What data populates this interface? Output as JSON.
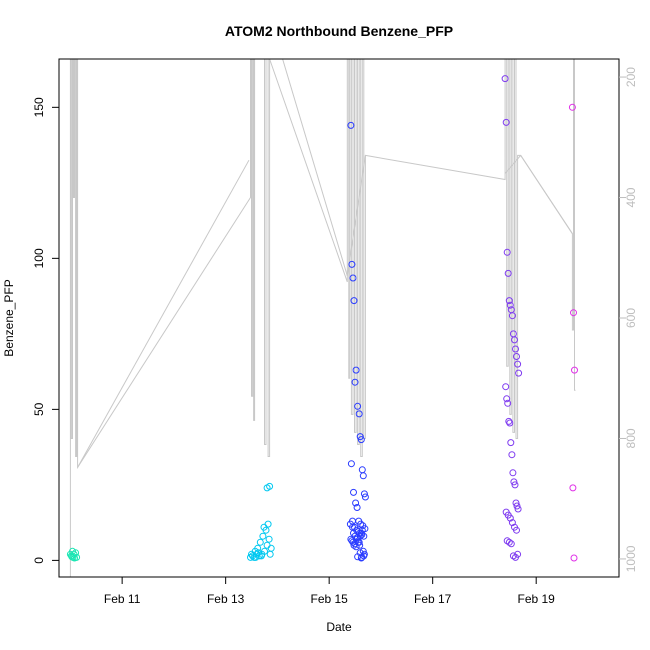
{
  "chart_data": {
    "type": "scatter",
    "title": "ATOM2 Northbound Benzene_PFP",
    "xlabel": "Date",
    "ylabel": "Benzene_PFP",
    "x_ticks": [
      "Feb 11",
      "Feb 13",
      "Feb 15",
      "Feb 17",
      "Feb 19"
    ],
    "x_tick_values": [
      11,
      13,
      15,
      17,
      19
    ],
    "xlim": [
      9.78,
      20.6
    ],
    "ylim": [
      -5.5,
      166
    ],
    "y_ticks": [
      0,
      50,
      100,
      150
    ],
    "y2_ticks": [
      200,
      400,
      600,
      800,
      1000
    ],
    "y2lim": [
      1030,
      170
    ],
    "y2_color": "#bdbdbd",
    "grid": false,
    "line_color": "#c8c8c8",
    "series": [
      {
        "color": "#19e6b3",
        "x": [
          10.0,
          10.02,
          10.04,
          10.05,
          10.07,
          10.08,
          10.1,
          10.12,
          10.03
        ],
        "y": [
          2,
          1.5,
          3,
          1,
          2,
          0.8,
          2.5,
          1,
          1.2
        ]
      },
      {
        "color": "#00c8f0",
        "x": [
          13.48,
          13.5,
          13.52,
          13.55,
          13.57,
          13.6,
          13.62,
          13.65,
          13.67,
          13.7,
          13.72,
          13.75,
          13.78,
          13.8,
          13.82,
          13.84,
          13.86,
          13.88,
          13.58,
          13.74,
          13.69,
          13.63,
          13.8,
          13.85
        ],
        "y": [
          1,
          2,
          1.5,
          1,
          3,
          2,
          4,
          1.5,
          6,
          2,
          8,
          3,
          10,
          5,
          12,
          7,
          2,
          4,
          1,
          11,
          1.5,
          2.5,
          24,
          24.5
        ]
      },
      {
        "color": "#2a3cff",
        "x": [
          15.42,
          15.44,
          15.46,
          15.48,
          15.5,
          15.52,
          15.55,
          15.58,
          15.6,
          15.62,
          15.64,
          15.66,
          15.68,
          15.7,
          15.43,
          15.47,
          15.51,
          15.54,
          15.57,
          15.61,
          15.65,
          15.69,
          15.45,
          15.49,
          15.53,
          15.56,
          15.59,
          15.63,
          15.67,
          15.42,
          15.44,
          15.46,
          15.48,
          15.5,
          15.52,
          15.55,
          15.58,
          15.6,
          15.62,
          15.64,
          15.66,
          15.68,
          15.41,
          15.45,
          15.47,
          15.5,
          15.53,
          15.56,
          15.59,
          15.63,
          15.67,
          15.6,
          15.62,
          15.55
        ],
        "y": [
          144,
          98,
          93.5,
          86,
          59,
          63,
          51,
          48.5,
          41,
          40,
          30,
          28,
          22,
          21,
          32,
          22.5,
          19,
          17.5,
          13,
          12,
          11.5,
          10.5,
          13,
          11,
          10,
          9.5,
          9,
          8.5,
          8,
          7,
          6.5,
          6,
          5,
          5.5,
          4.5,
          7.5,
          6,
          8,
          9,
          10,
          3,
          2,
          12,
          11,
          9,
          8,
          7,
          6,
          5,
          1,
          1.5,
          2.5,
          0.8,
          1.2
        ]
      },
      {
        "color": "#7f3cf0",
        "x": [
          18.4,
          18.42,
          18.44,
          18.46,
          18.48,
          18.5,
          18.52,
          18.54,
          18.56,
          18.58,
          18.6,
          18.62,
          18.64,
          18.66,
          18.41,
          18.43,
          18.45,
          18.47,
          18.49,
          18.51,
          18.53,
          18.55,
          18.57,
          18.59,
          18.61,
          18.63,
          18.65,
          18.42,
          18.46,
          18.5,
          18.54,
          18.58,
          18.62,
          18.44,
          18.48,
          18.52,
          18.56,
          18.6,
          18.64
        ],
        "y": [
          159.5,
          145,
          102,
          95,
          86,
          84.5,
          83,
          81,
          75,
          73,
          70,
          67.5,
          65,
          62,
          57.5,
          53.5,
          52,
          46,
          45.5,
          39,
          35,
          29,
          26,
          25,
          19,
          18,
          17,
          16,
          15,
          14,
          12.5,
          11,
          10,
          6.5,
          6,
          5.5,
          1.5,
          1,
          2
        ]
      },
      {
        "color": "#e030e8",
        "x": [
          19.7,
          19.72,
          19.74,
          19.71,
          19.73
        ],
        "y": [
          150,
          82,
          63,
          24,
          0.8
        ]
      }
    ],
    "line_y2": [
      [
        10.0,
        1030
      ],
      [
        10.0,
        170
      ],
      [
        10.02,
        170
      ],
      [
        10.02,
        800
      ],
      [
        10.04,
        800
      ],
      [
        10.04,
        170
      ],
      [
        10.06,
        170
      ],
      [
        10.06,
        400
      ],
      [
        10.08,
        400
      ],
      [
        10.08,
        170
      ],
      [
        10.1,
        170
      ],
      [
        10.1,
        830
      ],
      [
        10.12,
        830
      ],
      [
        10.12,
        170
      ],
      [
        10.14,
        170
      ],
      [
        10.14,
        848
      ],
      [
        13.48,
        400
      ],
      [
        13.48,
        170
      ],
      [
        13.5,
        170
      ],
      [
        13.5,
        730
      ],
      [
        13.52,
        730
      ],
      [
        13.52,
        170
      ],
      [
        13.54,
        170
      ],
      [
        13.54,
        770
      ],
      [
        13.56,
        770
      ],
      [
        13.56,
        170
      ],
      [
        13.6,
        170
      ],
      [
        13.6,
        170
      ],
      [
        13.75,
        170
      ],
      [
        13.75,
        810
      ],
      [
        13.78,
        810
      ],
      [
        13.78,
        170
      ],
      [
        13.82,
        170
      ],
      [
        13.82,
        830
      ],
      [
        13.85,
        830
      ],
      [
        13.85,
        170
      ],
      [
        15.35,
        540
      ],
      [
        15.35,
        170
      ],
      [
        15.38,
        170
      ],
      [
        15.38,
        700
      ],
      [
        15.4,
        700
      ],
      [
        15.4,
        170
      ],
      [
        15.43,
        170
      ],
      [
        15.43,
        760
      ],
      [
        15.46,
        760
      ],
      [
        15.46,
        170
      ],
      [
        15.49,
        170
      ],
      [
        15.49,
        790
      ],
      [
        15.52,
        790
      ],
      [
        15.52,
        170
      ],
      [
        15.55,
        170
      ],
      [
        15.55,
        810
      ],
      [
        15.58,
        810
      ],
      [
        15.58,
        170
      ],
      [
        15.61,
        170
      ],
      [
        15.61,
        830
      ],
      [
        15.64,
        830
      ],
      [
        15.64,
        170
      ],
      [
        15.67,
        170
      ],
      [
        15.67,
        800
      ],
      [
        15.7,
        800
      ],
      [
        15.7,
        330
      ],
      [
        18.4,
        370
      ],
      [
        18.4,
        170
      ],
      [
        18.43,
        170
      ],
      [
        18.43,
        680
      ],
      [
        18.46,
        680
      ],
      [
        18.46,
        170
      ],
      [
        18.49,
        170
      ],
      [
        18.49,
        760
      ],
      [
        18.52,
        760
      ],
      [
        18.52,
        170
      ],
      [
        18.55,
        170
      ],
      [
        18.55,
        790
      ],
      [
        18.58,
        790
      ],
      [
        18.58,
        170
      ],
      [
        18.61,
        170
      ],
      [
        18.61,
        800
      ],
      [
        18.64,
        800
      ],
      [
        18.64,
        330
      ],
      [
        18.7,
        330
      ],
      [
        19.7,
        460
      ],
      [
        19.7,
        620
      ],
      [
        19.72,
        620
      ],
      [
        19.72,
        170
      ],
      [
        19.74,
        170
      ],
      [
        19.74,
        720
      ],
      [
        19.76,
        720
      ]
    ],
    "line_connect_y2": [
      [
        10.14,
        848
      ],
      [
        13.45,
        338
      ],
      [
        13.9,
        170
      ],
      [
        14.1,
        170
      ],
      [
        15.35,
        530
      ],
      [
        15.7,
        330
      ],
      [
        18.4,
        360
      ],
      [
        18.7,
        330
      ],
      [
        19.7,
        460
      ]
    ]
  }
}
